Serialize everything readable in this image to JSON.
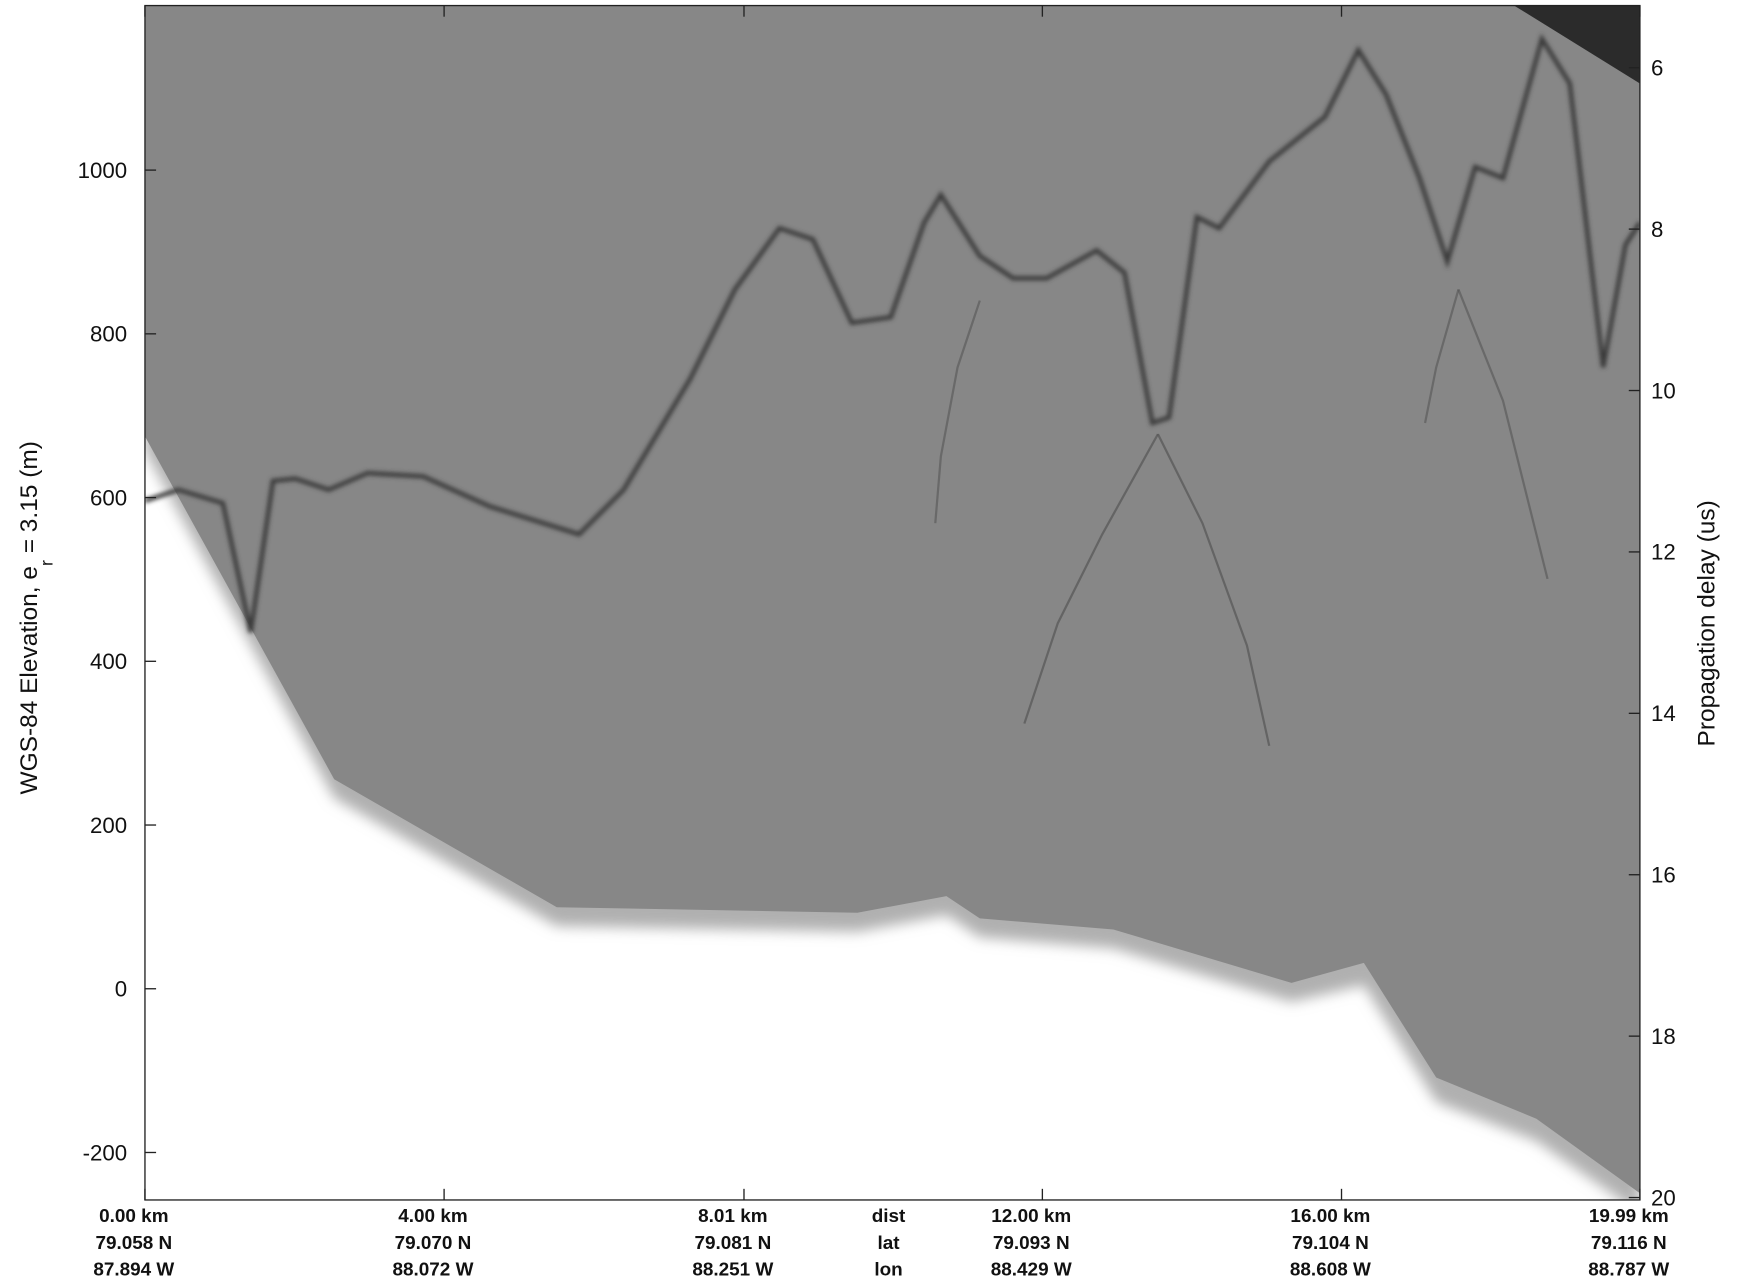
{
  "chart_data": {
    "type": "echogram",
    "ylabel": "WGS-84 Elevation, e",
    "ylabel_sub": "r",
    "ylabel_suffix": " = 3.15 (m)",
    "y2label": "Propagation delay (us)",
    "xlim": [
      0,
      19.99
    ],
    "xticks": [
      {
        "value": 0,
        "label": "0.00 km"
      },
      {
        "value": 4.0,
        "label": "4.00 km"
      },
      {
        "value": 8.01,
        "label": "8.01 km"
      },
      {
        "value": 12.0,
        "label": "12.00 km"
      },
      {
        "value": 16.0,
        "label": "16.00 km"
      },
      {
        "value": 19.99,
        "label": "19.99 km"
      }
    ],
    "lat_labels": [
      "79.058 N",
      "79.070 N",
      "79.081 N",
      "79.093 N",
      "79.104 N",
      "79.116 N"
    ],
    "lon_labels": [
      "87.894 W",
      "88.072 W",
      "88.251 W",
      "88.429 W",
      "88.608 W",
      "88.787 W"
    ],
    "row_labels": [
      "dist",
      "lat",
      "lon"
    ],
    "ylim": [
      -258,
      1201
    ],
    "yticks": [
      -200,
      0,
      200,
      400,
      600,
      800,
      1000
    ],
    "y2lim": [
      5.23,
      20.03
    ],
    "y2ticks": [
      6,
      8,
      10,
      12,
      14,
      16,
      18,
      20
    ]
  }
}
